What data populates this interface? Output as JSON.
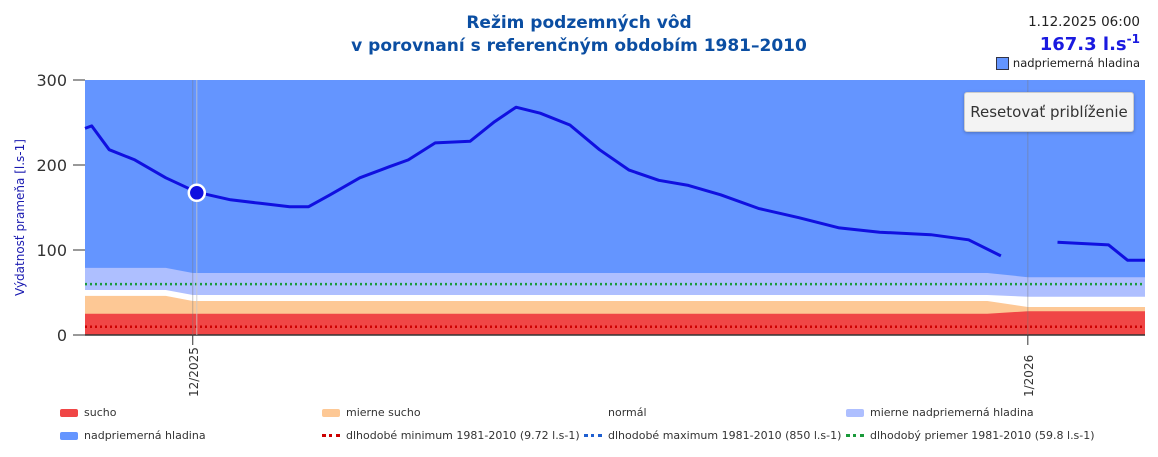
{
  "header": {
    "title_line1": "Režim podzemných vôd",
    "title_line2": "v porovnaní s referenčným obdobím 1981–2010"
  },
  "tooltip": {
    "datetime": "1.12.2025 06:00",
    "value": "167.3 l.s",
    "unit_exp": "-1",
    "category": "nadpriemerná hladina"
  },
  "reset_button": "Resetovať priblíženie",
  "colors": {
    "sucho": "#f04646",
    "mierne_sucho": "#fdc895",
    "normal": "#ffffff",
    "mierne_nadpriemerna": "#aebfff",
    "nadpriemerna": "#6495ff",
    "line": "#1010e0",
    "min": "#cc0000",
    "max": "#1f5fd0",
    "mean": "#1a9a3a"
  },
  "legend": [
    {
      "label": "sucho",
      "kind": "area",
      "color": "#f04646"
    },
    {
      "label": "mierne sucho",
      "kind": "area",
      "color": "#fdc895"
    },
    {
      "label": "normál",
      "kind": "area",
      "color": "#ffffff"
    },
    {
      "label": "mierne nadpriemerná hladina",
      "kind": "area",
      "color": "#aebfff"
    },
    {
      "label": "nadpriemerná hladina",
      "kind": "area",
      "color": "#6495ff"
    },
    {
      "label": "dlhodobé minimum 1981-2010 (9.72 l.s-1)",
      "kind": "dot",
      "color": "#cc0000"
    },
    {
      "label": "dlhodobé maximum 1981-2010 (850 l.s-1)",
      "kind": "dot",
      "color": "#1f5fd0"
    },
    {
      "label": "dlhodobý priemer 1981-2010 (59.8 l.s-1)",
      "kind": "dot",
      "color": "#1a9a3a"
    }
  ],
  "chart_data": {
    "type": "area",
    "ylabel": "Výdatnosť prameňa [l.s-1]",
    "ylim": [
      0,
      300
    ],
    "yticks": [
      "0",
      "100",
      "200",
      "300"
    ],
    "x_unit": "days since 1.12.2025",
    "xlim": [
      -4.0,
      35.35
    ],
    "xticks": [
      {
        "x": 0,
        "label": "12/2025"
      },
      {
        "x": 31,
        "label": "1/2026"
      }
    ],
    "bands": {
      "x": [
        -4.0,
        -1.0,
        0.0,
        29.5,
        31.0,
        35.35
      ],
      "sucho_top": [
        25,
        25,
        25,
        25,
        28,
        28
      ],
      "mierne_sucho_top": [
        46,
        46,
        40,
        40,
        33,
        33
      ],
      "normal_top": [
        53,
        53,
        47,
        47,
        45,
        45
      ],
      "mierne_nadpriemerna_top": [
        79,
        79,
        73,
        73,
        68,
        68
      ]
    },
    "reference_lines": {
      "minimum": 9.72,
      "maximum": 850,
      "mean": 59.8
    },
    "series": [
      {
        "name": "výdatnosť",
        "x": [
          -4.0,
          -3.75,
          -3.1,
          -2.15,
          -1.0,
          0.15,
          1.4,
          2.5,
          3.6,
          4.3,
          5.1,
          6.2,
          7.3,
          8.0,
          9.0,
          10.3,
          11.2,
          12.0,
          12.9,
          14.0,
          15.1,
          16.2,
          17.3,
          18.4,
          19.6,
          21.0,
          22.5,
          24.0,
          25.5,
          27.4,
          28.8,
          30.0,
          30.5,
          32.1,
          34.0,
          34.7,
          35.35
        ],
        "y": [
          243,
          246,
          218,
          206,
          185,
          168,
          159,
          155,
          151,
          151,
          165,
          185,
          198,
          206,
          226,
          228,
          251,
          268,
          261,
          247,
          218,
          194,
          182,
          176,
          165,
          149,
          138,
          126,
          121,
          118,
          112,
          93,
          null,
          109,
          106,
          88,
          88
        ]
      }
    ],
    "highlight": {
      "x": 0.15,
      "y": 167.3
    }
  }
}
